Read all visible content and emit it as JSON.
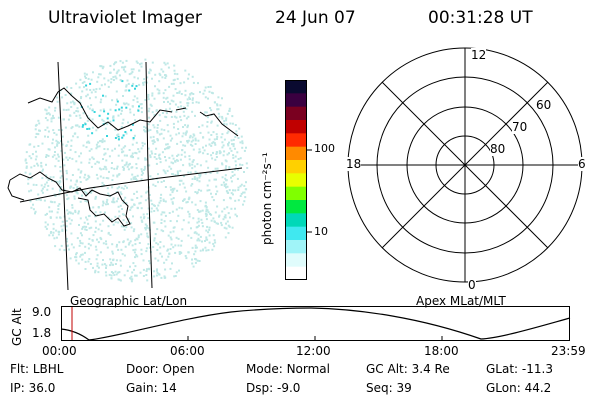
{
  "header": {
    "instrument": "Ultraviolet Imager",
    "date": "24 Jun 07",
    "time": "00:31:28 UT"
  },
  "left_panel": {
    "label": "Geographic Lat/Lon",
    "dot_color": "#bfe8e6",
    "bright_color": "#35d4dc"
  },
  "colorbar": {
    "label": "photon cm⁻²s⁻¹",
    "ticks": [
      "100",
      "10"
    ],
    "colors": [
      "#0a0a30",
      "#3a0040",
      "#7a0020",
      "#c00000",
      "#ff2a00",
      "#ff8a00",
      "#ffd000",
      "#e8ff00",
      "#80ff00",
      "#00e840",
      "#00d8b8",
      "#40e8f0",
      "#a0f4f8",
      "#e0fcfc",
      "#ffffff"
    ]
  },
  "polar_plot": {
    "label": "Apex MLat/MLT",
    "mlt_labels": {
      "top": "12",
      "left": "18",
      "right": "6",
      "bottom": "0"
    },
    "lat_labels": [
      "60",
      "70",
      "80"
    ]
  },
  "timeline": {
    "ylabel": "GC Alt",
    "y_ticks": [
      "9.0",
      "1.8"
    ],
    "x_ticks": [
      "00:00",
      "06:00",
      "12:00",
      "18:00",
      "23:59"
    ],
    "marker_time": "00:31:28"
  },
  "status": {
    "flt": {
      "label": "Flt:",
      "value": "LBHL"
    },
    "ip": {
      "label": "IP:",
      "value": "36.0"
    },
    "door": {
      "label": "Door:",
      "value": "Open"
    },
    "gain": {
      "label": "Gain:",
      "value": "14"
    },
    "mode": {
      "label": "Mode:",
      "value": "Normal"
    },
    "dsp": {
      "label": "Dsp:",
      "value": "-9.0"
    },
    "gcalt": {
      "label": "GC Alt:",
      "value": "3.4 Re"
    },
    "seq": {
      "label": "Seq:",
      "value": "39"
    },
    "glat": {
      "label": "GLat:",
      "value": "-11.3"
    },
    "glon": {
      "label": "GLon:",
      "value": "44.2"
    }
  }
}
